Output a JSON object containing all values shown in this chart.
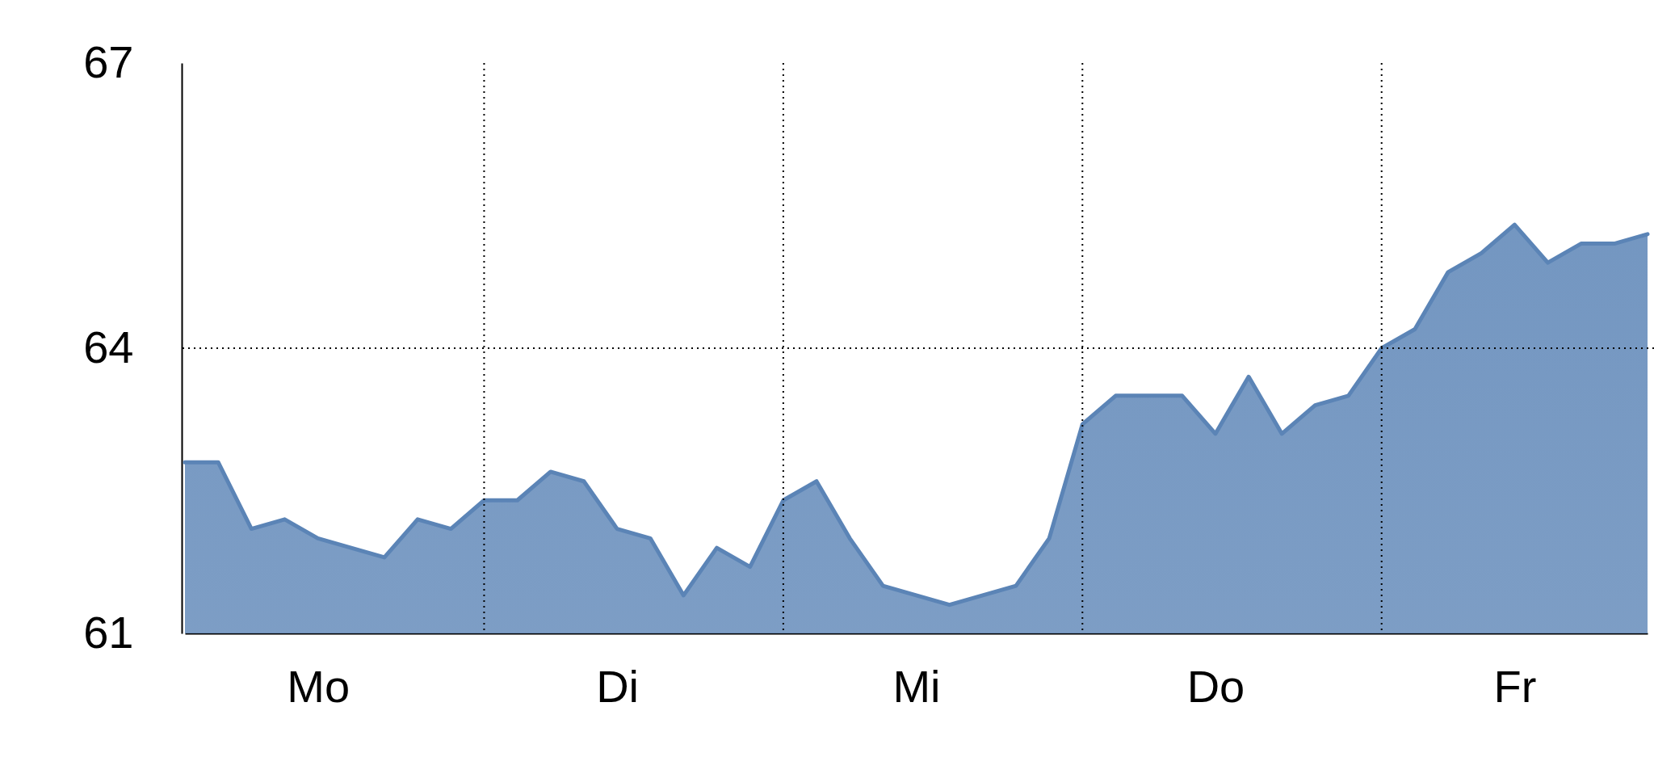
{
  "chart_data": {
    "type": "area",
    "categories": [
      null,
      null,
      null,
      null,
      "Mo",
      null,
      null,
      null,
      null,
      null,
      null,
      null,
      null,
      "Di",
      null,
      null,
      null,
      null,
      null,
      null,
      null,
      null,
      "Mi",
      null,
      null,
      null,
      null,
      null,
      null,
      null,
      null,
      "Do",
      null,
      null,
      null,
      null,
      null,
      null,
      null,
      null,
      "Fr",
      null,
      null,
      null,
      null
    ],
    "series": [
      {
        "color": "#5b84b6",
        "values": [
          62.8,
          62.8,
          62.1,
          62.2,
          62.0,
          61.9,
          61.8,
          62.2,
          62.1,
          62.4,
          62.4,
          62.7,
          62.6,
          62.1,
          62.0,
          61.4,
          61.9,
          61.7,
          62.4,
          62.6,
          62.0,
          61.5,
          61.4,
          61.3,
          61.4,
          61.5,
          62.0,
          63.2,
          63.5,
          63.5,
          63.5,
          63.1,
          63.7,
          63.1,
          63.4,
          63.5,
          64.0,
          64.2,
          64.8,
          65.0,
          65.3,
          64.9,
          65.1,
          65.1,
          65.2
        ]
      }
    ],
    "ylim": [
      61,
      67
    ],
    "yticks": [
      61,
      64,
      67
    ],
    "grid": "x",
    "ref_lines": [
      {
        "axis": "y",
        "value": 64,
        "line_style": "dotted"
      }
    ]
  }
}
